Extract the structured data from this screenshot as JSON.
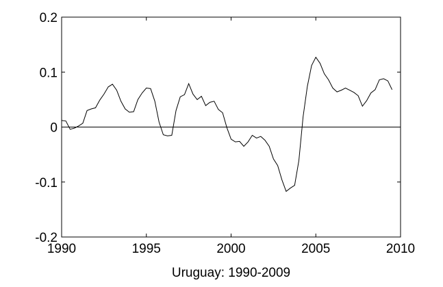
{
  "chart_data": {
    "type": "line",
    "xlabel": "Uruguay: 1990-2009",
    "x": [
      1990,
      1990.25,
      1990.5,
      1990.75,
      1991,
      1991.25,
      1991.5,
      1991.75,
      1992,
      1992.25,
      1992.5,
      1992.75,
      1993,
      1993.25,
      1993.5,
      1993.75,
      1994,
      1994.25,
      1994.5,
      1994.75,
      1995,
      1995.25,
      1995.5,
      1995.75,
      1996,
      1996.25,
      1996.5,
      1996.75,
      1997,
      1997.25,
      1997.5,
      1997.75,
      1998,
      1998.25,
      1998.5,
      1998.75,
      1999,
      1999.25,
      1999.5,
      1999.75,
      2000,
      2000.25,
      2000.5,
      2000.75,
      2001,
      2001.25,
      2001.5,
      2001.75,
      2002,
      2002.25,
      2002.5,
      2002.75,
      2003,
      2003.25,
      2003.5,
      2003.75,
      2004,
      2004.25,
      2004.5,
      2004.75,
      2005,
      2005.25,
      2005.5,
      2005.75,
      2006,
      2006.25,
      2006.5,
      2006.75,
      2007,
      2007.25,
      2007.5,
      2007.75,
      2008,
      2008.25,
      2008.5,
      2008.75,
      2009,
      2009.25,
      2009.5
    ],
    "series": [
      {
        "color": "#000000",
        "values": [
          0.012,
          0.011,
          -0.004,
          -0.002,
          0.002,
          0.007,
          0.03,
          0.033,
          0.035,
          0.049,
          0.06,
          0.073,
          0.078,
          0.067,
          0.047,
          0.033,
          0.027,
          0.028,
          0.05,
          0.062,
          0.071,
          0.07,
          0.047,
          0.009,
          -0.014,
          -0.016,
          -0.015,
          0.03,
          0.055,
          0.059,
          0.079,
          0.06,
          0.05,
          0.056,
          0.039,
          0.045,
          0.047,
          0.032,
          0.026,
          -0.001,
          -0.022,
          -0.027,
          -0.026,
          -0.035,
          -0.027,
          -0.015,
          -0.02,
          -0.017,
          -0.024,
          -0.035,
          -0.058,
          -0.07,
          -0.096,
          -0.117,
          -0.111,
          -0.106,
          -0.061,
          0.019,
          0.074,
          0.112,
          0.127,
          0.116,
          0.097,
          0.086,
          0.071,
          0.064,
          0.067,
          0.071,
          0.067,
          0.063,
          0.057,
          0.038,
          0.048,
          0.062,
          0.068,
          0.086,
          0.088,
          0.084,
          0.068
        ]
      }
    ],
    "reference_line": 0,
    "xlim": [
      1990,
      2010
    ],
    "xticks": [
      1990,
      1995,
      2000,
      2005,
      2010
    ],
    "ylim": [
      -0.2,
      0.2
    ],
    "yticks": [
      -0.2,
      -0.1,
      0,
      0.1,
      0.2
    ]
  }
}
